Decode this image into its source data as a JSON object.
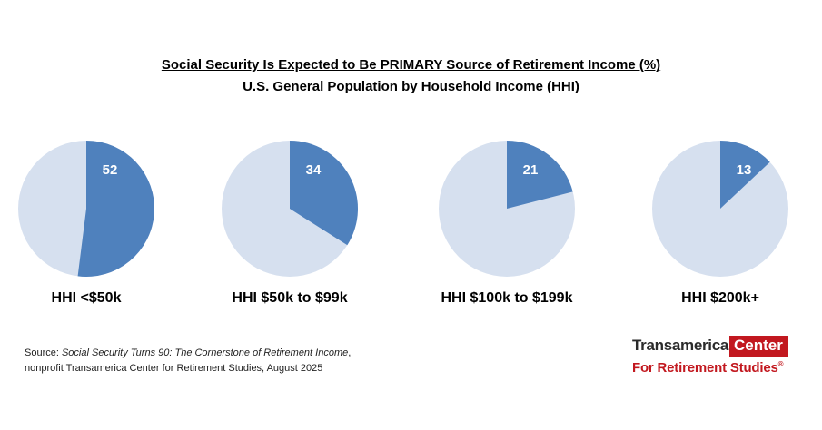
{
  "title": "Social Security Is Expected to Be PRIMARY Source of Retirement Income (%)",
  "subtitle": "U.S. General Population by Household Income (HHI)",
  "source": {
    "prefix": "Source: ",
    "title": "Social Security Turns 90: The Cornerstone of Retirement Income",
    "suffix": ",",
    "line2": "nonprofit Transamerica Center for Retirement Studies, August 2025"
  },
  "logo": {
    "word1": "Transamerica",
    "word2": "Center",
    "line2": "For Retirement Studies",
    "mark": "®"
  },
  "colors": {
    "highlight": "#4f81bd",
    "remainder": "#d6e0ef",
    "brand_red": "#c2181f"
  },
  "chart_data": [
    {
      "type": "pie",
      "label": "HHI <$50k",
      "value": 52
    },
    {
      "type": "pie",
      "label": "HHI $50k to $99k",
      "value": 34
    },
    {
      "type": "pie",
      "label": "HHI $100k to $199k",
      "value": 21
    },
    {
      "type": "pie",
      "label": "HHI $200k+",
      "value": 13
    }
  ]
}
